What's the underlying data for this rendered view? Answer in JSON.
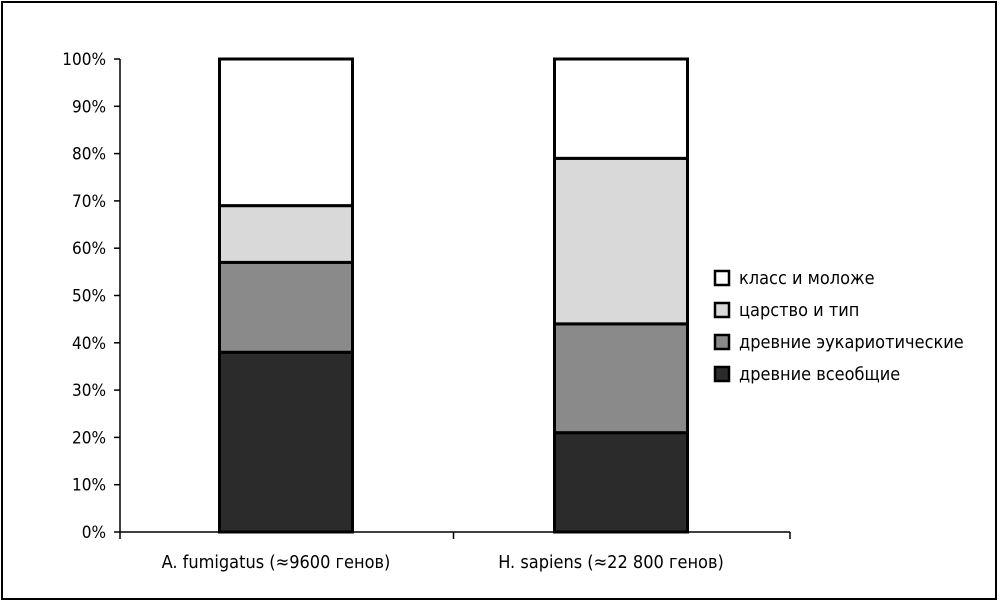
{
  "chart_data": {
    "type": "bar",
    "stacked": true,
    "categories": [
      "A. fumigatus (≈9600 генов)",
      "H. sapiens (≈22 800 генов)"
    ],
    "series": [
      {
        "name": "древние всеобщие",
        "values": [
          38,
          21
        ],
        "color": "#2b2b2b"
      },
      {
        "name": "древние эукариотические",
        "values": [
          19,
          23
        ],
        "color": "#8a8a8a"
      },
      {
        "name": "царство и тип",
        "values": [
          12,
          35
        ],
        "color": "#d9d9d9"
      },
      {
        "name": "класс и моложе",
        "values": [
          31,
          21
        ],
        "color": "#ffffff"
      }
    ],
    "y_ticks": [
      "0%",
      "10%",
      "20%",
      "30%",
      "40%",
      "50%",
      "60%",
      "70%",
      "80%",
      "90%",
      "100%"
    ],
    "ylim": [
      0,
      100
    ],
    "grid": false,
    "legend_position": "right",
    "legend_order": [
      "класс и моложе",
      "царство и тип",
      "древние эукариотические",
      "древние всеобщие"
    ]
  }
}
